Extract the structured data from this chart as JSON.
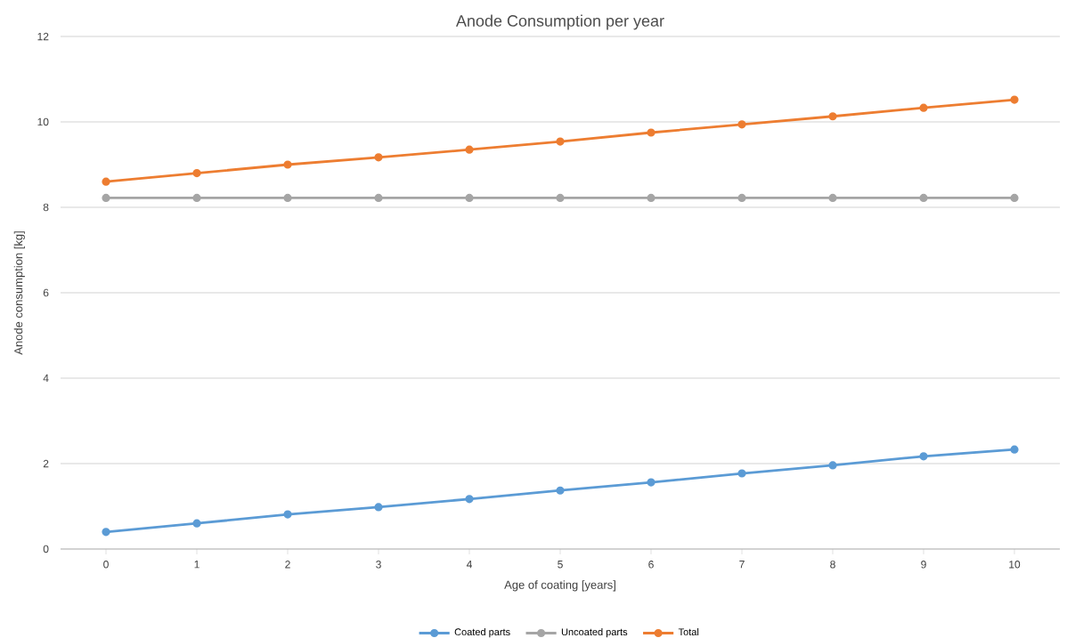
{
  "chart_data": {
    "type": "line",
    "title": "Anode Consumption per year",
    "xlabel": "Age of coating [years]",
    "ylabel": "Anode consumption [kg]",
    "x": [
      0,
      1,
      2,
      3,
      4,
      5,
      6,
      7,
      8,
      9,
      10
    ],
    "xlim": [
      -0.5,
      10.5
    ],
    "xticks": [
      0,
      1,
      2,
      3,
      4,
      5,
      6,
      7,
      8,
      9,
      10
    ],
    "ylim": [
      0,
      12
    ],
    "yticks": [
      0,
      2,
      4,
      6,
      8,
      10,
      12
    ],
    "grid": "y",
    "legend": "bottom",
    "marker": "circle",
    "line_style": "solid",
    "series": [
      {
        "name": "Coated parts",
        "color": "#5b9bd5",
        "values": [
          0.4,
          0.6,
          0.81,
          0.98,
          1.17,
          1.37,
          1.56,
          1.77,
          1.96,
          2.17,
          2.33
        ]
      },
      {
        "name": "Uncoated parts",
        "color": "#a5a5a5",
        "values": [
          8.22,
          8.22,
          8.22,
          8.22,
          8.22,
          8.22,
          8.22,
          8.22,
          8.22,
          8.22,
          8.22
        ]
      },
      {
        "name": "Total",
        "color": "#ed7d31",
        "values": [
          8.6,
          8.8,
          9.0,
          9.17,
          9.35,
          9.54,
          9.75,
          9.94,
          10.13,
          10.33,
          10.52
        ]
      }
    ]
  }
}
